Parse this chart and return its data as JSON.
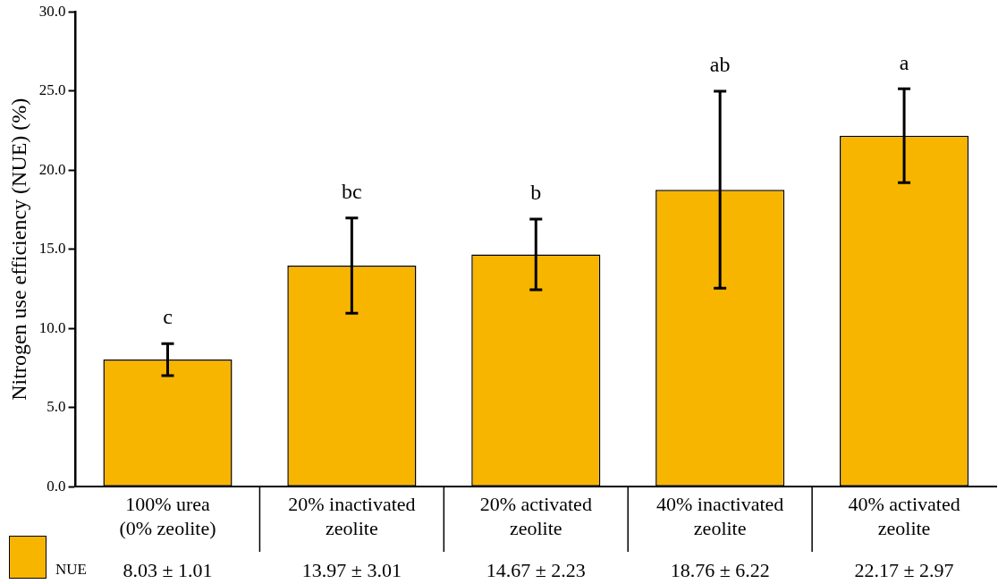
{
  "chart_data": {
    "type": "bar",
    "ylabel": "Nitrogen use efficiency (NUE) (%)",
    "categories": [
      "100% urea (0% zeolite)",
      "20% inactivated zeolite",
      "20% activated zeolite",
      "40% inactivated zeolite",
      "40% activated zeolite"
    ],
    "series": [
      {
        "name": "NUE",
        "color": "#f7b500",
        "values": [
          8.03,
          13.97,
          14.67,
          18.76,
          22.17
        ],
        "errors": [
          1.01,
          3.01,
          2.23,
          6.22,
          2.97
        ],
        "value_labels": [
          "8.03 ± 1.01",
          "13.97 ± 3.01",
          "14.67 ± 2.23",
          "18.76 ± 6.22",
          "22.17 ± 2.97"
        ]
      }
    ],
    "ylim": [
      0,
      30
    ],
    "yticks": [
      {
        "value": 0,
        "label": "0.0"
      },
      {
        "value": 5,
        "label": "5.0"
      },
      {
        "value": 10,
        "label": "10.0"
      },
      {
        "value": 15,
        "label": "15.0"
      },
      {
        "value": 20,
        "label": "20.0"
      },
      {
        "value": 25,
        "label": "25.0"
      },
      {
        "value": 30,
        "label": "30.0"
      }
    ],
    "annotations": [
      "c",
      "bc",
      "b",
      "ab",
      "a"
    ],
    "grid": false,
    "legend": "bottom left"
  }
}
